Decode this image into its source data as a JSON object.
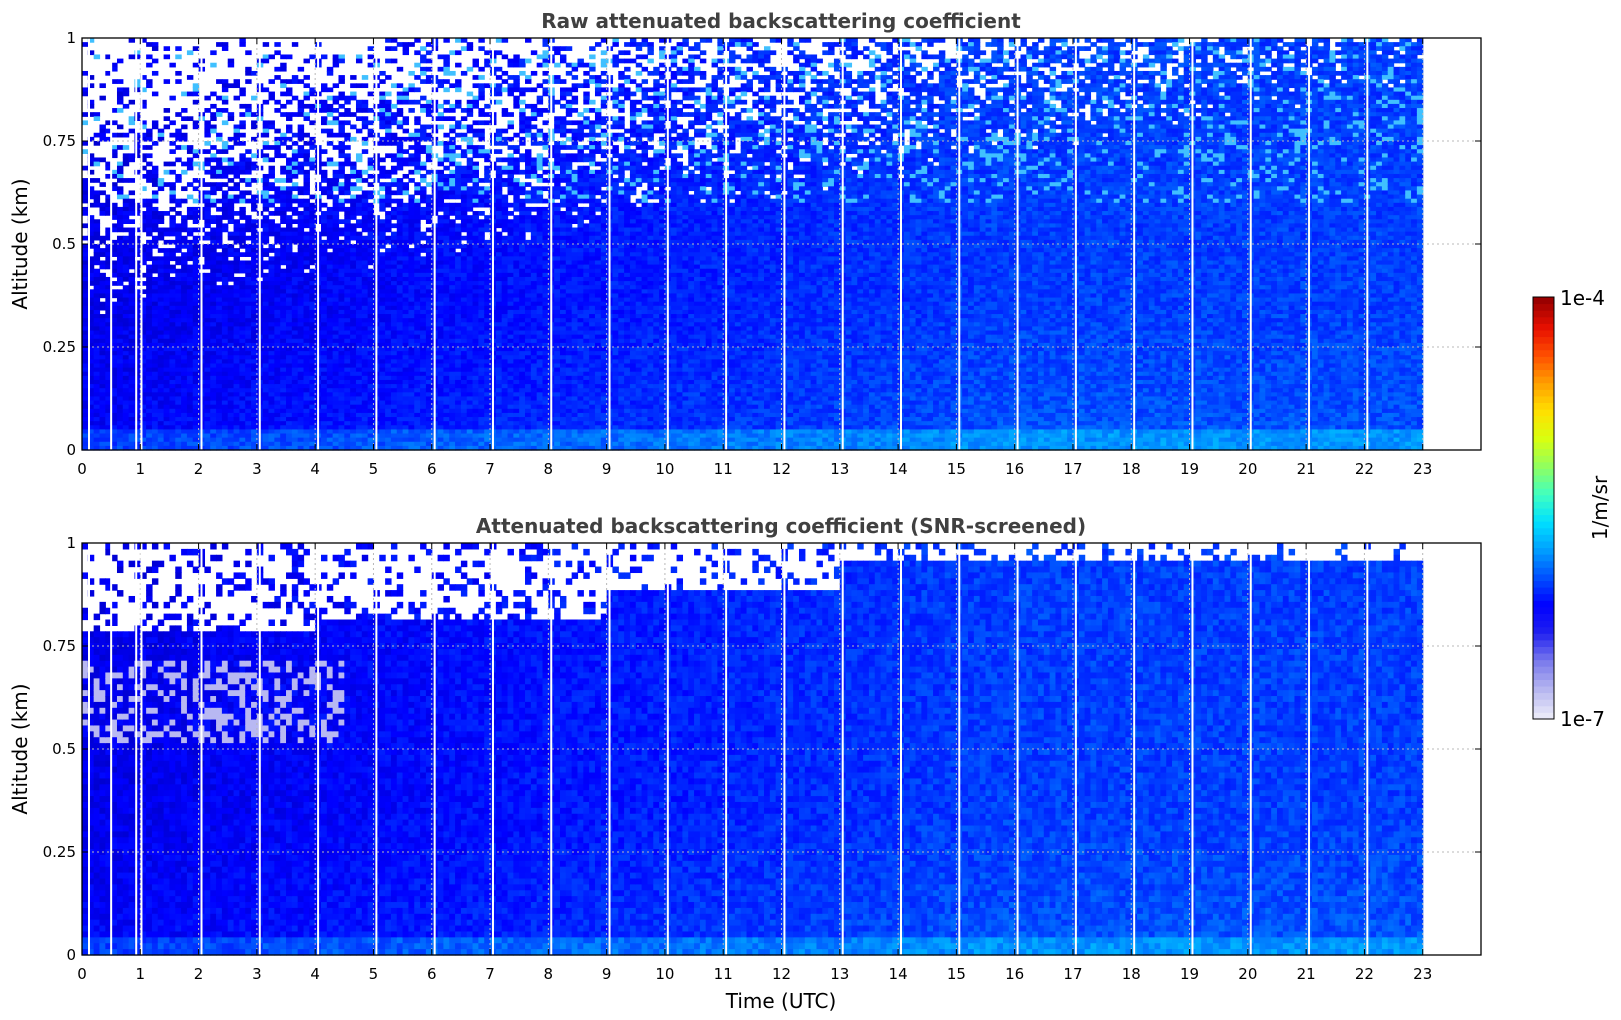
{
  "colorbar": {
    "max_label": "1e-4",
    "min_label": "1e-7",
    "unit_label": "1/m/sr",
    "colormap": [
      "#e8e8f8",
      "#b4b4f0",
      "#7878ec",
      "#2020f0",
      "#0000ff",
      "#0050ff",
      "#00a0ff",
      "#00e0ff",
      "#40ffc0",
      "#90ff60",
      "#d8ff10",
      "#ffe000",
      "#ffa000",
      "#ff5000",
      "#e81000",
      "#9a0000"
    ]
  },
  "chart_data": [
    {
      "type": "heatmap",
      "title": "Raw attenuated backscattering coefficient",
      "ylabel": "Altitude (km)",
      "xlabel": "",
      "xlim": [
        0,
        24
      ],
      "ylim": [
        0,
        1
      ],
      "x_ticks": [
        "0",
        "1",
        "2",
        "3",
        "4",
        "5",
        "6",
        "7",
        "8",
        "9",
        "10",
        "11",
        "12",
        "13",
        "14",
        "15",
        "16",
        "17",
        "18",
        "19",
        "20",
        "21",
        "22",
        "23"
      ],
      "y_ticks": [
        "0",
        "0.25",
        "0.5",
        "0.75",
        "1"
      ],
      "data_end_hour": 23,
      "grid": true,
      "missing_data_times_utc": [
        0.12,
        0.5,
        0.93,
        1.02,
        2.05,
        3.05,
        4.05,
        5.05,
        6.05,
        7.05,
        8.05,
        9.05,
        10.05,
        11.05,
        12.05,
        13.05,
        14.05,
        15.05,
        16.05,
        17.05,
        18.05,
        19.05,
        20.05,
        21.05,
        22.05
      ]
    },
    {
      "type": "heatmap",
      "title": "Attenuated backscattering coefficient (SNR-screened)",
      "ylabel": "Altitude (km)",
      "xlabel": "Time (UTC)",
      "xlim": [
        0,
        24
      ],
      "ylim": [
        0,
        1
      ],
      "x_ticks": [
        "0",
        "1",
        "2",
        "3",
        "4",
        "5",
        "6",
        "7",
        "8",
        "9",
        "10",
        "11",
        "12",
        "13",
        "14",
        "15",
        "16",
        "17",
        "18",
        "19",
        "20",
        "21",
        "22",
        "23"
      ],
      "y_ticks": [
        "0",
        "0.25",
        "0.5",
        "0.75",
        "1"
      ],
      "data_end_hour": 23,
      "grid": true,
      "missing_data_times_utc": [
        0.12,
        0.5,
        0.93,
        1.02,
        2.05,
        3.05,
        4.05,
        5.05,
        6.05,
        7.05,
        8.05,
        9.05,
        10.05,
        11.05,
        12.05,
        13.05,
        14.05,
        15.05,
        16.05,
        17.05,
        18.05,
        19.05,
        20.05,
        21.05,
        22.05
      ]
    }
  ]
}
